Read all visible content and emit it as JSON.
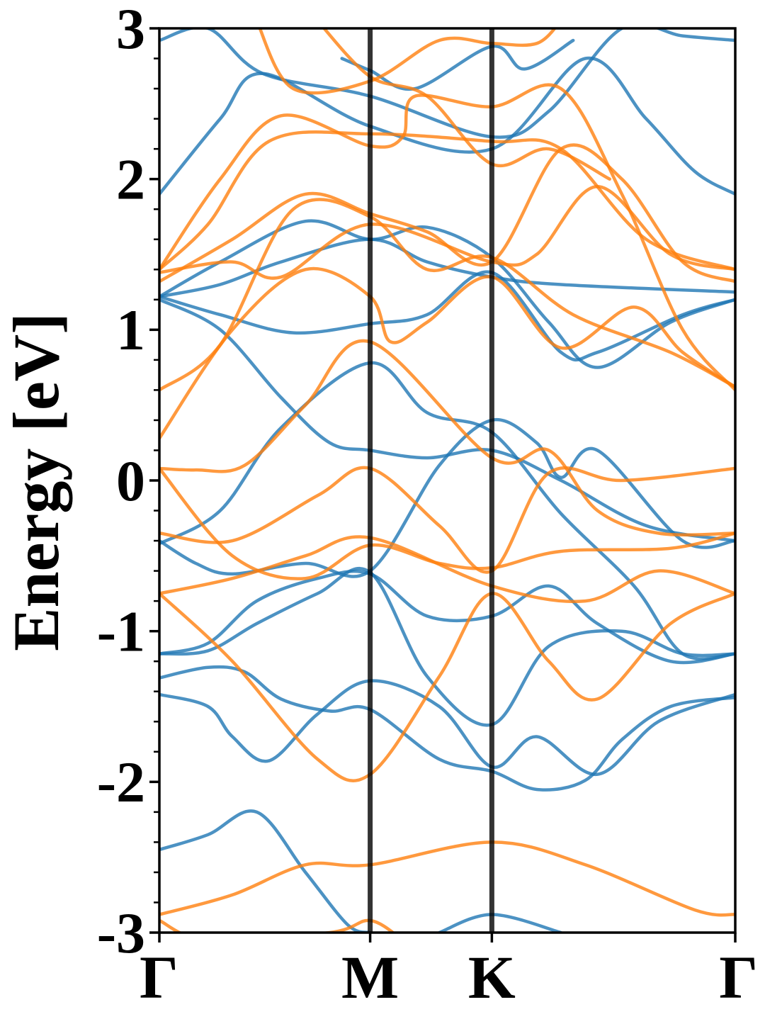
{
  "chart_data": {
    "type": "line",
    "title": "",
    "xlabel": "",
    "ylabel": "Energy [eV]",
    "ylim": [
      -3,
      3
    ],
    "k_path": [
      0,
      1.732,
      2.732,
      4.732
    ],
    "high_symmetry_points": [
      {
        "label": "Γ",
        "k": 0
      },
      {
        "label": "M",
        "k": 1.732
      },
      {
        "label": "K",
        "k": 2.732
      },
      {
        "label": "Γ",
        "k": 4.732
      }
    ],
    "y_ticks": [
      {
        "value": 3,
        "label": "3"
      },
      {
        "value": 2,
        "label": "2"
      },
      {
        "value": 1,
        "label": "1"
      },
      {
        "value": 0,
        "label": "0"
      },
      {
        "value": -1,
        "label": "-1"
      },
      {
        "value": -2,
        "label": "-2"
      },
      {
        "value": -3,
        "label": "-3"
      }
    ],
    "minor_y_step": 0.2,
    "grid": false,
    "legend": "none",
    "colors": {
      "spin_up": "#1f77b4",
      "spin_down": "#ff7f0e",
      "kline": "#000000"
    },
    "series": [
      {
        "group": "blue",
        "points": [
          [
            0,
            -2.45
          ],
          [
            0.4,
            -2.35
          ],
          [
            0.8,
            -2.2
          ],
          [
            1.2,
            -2.6
          ],
          [
            1.55,
            -2.95
          ],
          [
            1.732,
            -3.0
          ]
        ]
      },
      {
        "group": "blue",
        "points": [
          [
            0,
            -1.42
          ],
          [
            0.4,
            -1.5
          ],
          [
            0.6,
            -1.7
          ],
          [
            0.9,
            -1.86
          ],
          [
            1.3,
            -1.55
          ],
          [
            1.732,
            -1.33
          ],
          [
            2.3,
            -1.5
          ],
          [
            2.732,
            -1.9
          ],
          [
            3.1,
            -1.7
          ],
          [
            3.6,
            -1.95
          ],
          [
            4.1,
            -1.6
          ],
          [
            4.732,
            -1.42
          ]
        ]
      },
      {
        "group": "blue",
        "points": [
          [
            0,
            -1.31
          ],
          [
            0.4,
            -1.24
          ],
          [
            0.7,
            -1.27
          ],
          [
            1.0,
            -1.45
          ],
          [
            1.4,
            -1.53
          ],
          [
            1.732,
            -1.52
          ],
          [
            2.3,
            -1.85
          ],
          [
            2.732,
            -1.93
          ],
          [
            3.1,
            -2.05
          ],
          [
            3.5,
            -1.99
          ],
          [
            3.8,
            -1.72
          ],
          [
            4.2,
            -1.5
          ],
          [
            4.732,
            -1.44
          ]
        ]
      },
      {
        "group": "blue",
        "points": [
          [
            0,
            -1.15
          ],
          [
            0.4,
            -1.13
          ],
          [
            0.8,
            -0.95
          ],
          [
            1.3,
            -0.75
          ],
          [
            1.732,
            -0.61
          ],
          [
            2.2,
            -1.3
          ],
          [
            2.732,
            -1.62
          ],
          [
            3.2,
            -1.1
          ],
          [
            3.8,
            -1.0
          ],
          [
            4.3,
            -1.15
          ],
          [
            4.732,
            -1.15
          ]
        ]
      },
      {
        "group": "blue",
        "points": [
          [
            0,
            -1.15
          ],
          [
            0.4,
            -1.08
          ],
          [
            0.8,
            -0.8
          ],
          [
            1.3,
            -0.65
          ],
          [
            1.732,
            -0.62
          ],
          [
            2.2,
            -0.9
          ],
          [
            2.732,
            -0.9
          ],
          [
            3.2,
            -0.7
          ],
          [
            3.6,
            -0.95
          ],
          [
            4.2,
            -1.2
          ],
          [
            4.732,
            -1.15
          ]
        ]
      },
      {
        "group": "blue",
        "points": [
          [
            0,
            -0.4
          ],
          [
            0.3,
            -0.55
          ],
          [
            0.6,
            -0.62
          ],
          [
            1.2,
            -0.55
          ],
          [
            1.732,
            -0.6
          ],
          [
            2.3,
            0.1
          ],
          [
            2.732,
            0.4
          ],
          [
            3.1,
            0.25
          ],
          [
            3.3,
            0.02
          ],
          [
            3.6,
            0.2
          ],
          [
            4.3,
            -0.4
          ],
          [
            4.732,
            -0.4
          ]
        ]
      },
      {
        "group": "blue",
        "points": [
          [
            0,
            -0.42
          ],
          [
            0.5,
            -0.2
          ],
          [
            1.0,
            0.35
          ],
          [
            1.732,
            0.78
          ],
          [
            2.2,
            0.45
          ],
          [
            2.732,
            0.32
          ],
          [
            3.3,
            -0.22
          ],
          [
            3.9,
            -0.7
          ],
          [
            4.3,
            -1.15
          ],
          [
            4.732,
            -1.15
          ]
        ]
      },
      {
        "group": "blue",
        "points": [
          [
            0,
            1.2
          ],
          [
            0.5,
            1.0
          ],
          [
            1.0,
            0.55
          ],
          [
            1.4,
            0.25
          ],
          [
            1.732,
            0.2
          ],
          [
            2.2,
            0.15
          ],
          [
            2.732,
            0.2
          ],
          [
            3.3,
            0.0
          ],
          [
            4.0,
            -0.3
          ],
          [
            4.732,
            -0.4
          ]
        ]
      },
      {
        "group": "blue",
        "points": [
          [
            0,
            1.22
          ],
          [
            0.5,
            1.1
          ],
          [
            1.1,
            0.98
          ],
          [
            1.732,
            1.04
          ],
          [
            2.2,
            1.1
          ],
          [
            2.732,
            1.38
          ],
          [
            3.3,
            0.85
          ],
          [
            3.6,
            0.85
          ],
          [
            4.3,
            1.1
          ],
          [
            4.732,
            1.2
          ]
        ]
      },
      {
        "group": "blue",
        "points": [
          [
            0,
            1.22
          ],
          [
            0.5,
            1.3
          ],
          [
            1.0,
            1.45
          ],
          [
            1.732,
            1.6
          ],
          [
            2.2,
            1.45
          ],
          [
            2.732,
            1.35
          ],
          [
            3.3,
            1.3
          ],
          [
            4.732,
            1.25
          ]
        ]
      },
      {
        "group": "blue",
        "points": [
          [
            0,
            1.22
          ],
          [
            0.5,
            1.45
          ],
          [
            1.2,
            1.72
          ],
          [
            1.732,
            1.6
          ],
          [
            2.2,
            1.68
          ],
          [
            2.732,
            1.48
          ],
          [
            3.2,
            1.05
          ],
          [
            3.6,
            0.75
          ],
          [
            4.2,
            1.05
          ],
          [
            4.732,
            1.2
          ]
        ]
      },
      {
        "group": "blue",
        "points": [
          [
            0,
            1.9
          ],
          [
            0.5,
            2.4
          ],
          [
            0.85,
            2.7
          ],
          [
            1.732,
            2.35
          ],
          [
            2.732,
            2.2
          ],
          [
            3.5,
            2.8
          ],
          [
            4.0,
            2.4
          ],
          [
            4.4,
            2.05
          ],
          [
            4.732,
            1.9
          ]
        ]
      },
      {
        "group": "blue",
        "points": [
          [
            0,
            2.92
          ],
          [
            0.4,
            3.0
          ],
          [
            0.85,
            2.7
          ],
          [
            1.732,
            2.55
          ],
          [
            2.732,
            2.28
          ],
          [
            3.2,
            2.45
          ],
          [
            3.8,
            3.0
          ],
          [
            4.3,
            2.95
          ],
          [
            4.732,
            2.92
          ]
        ]
      },
      {
        "group": "blue",
        "points": [
          [
            1.5,
            2.8
          ],
          [
            1.732,
            2.72
          ],
          [
            2.1,
            2.6
          ],
          [
            2.732,
            2.88
          ],
          [
            3.0,
            2.73
          ],
          [
            3.4,
            2.92
          ]
        ]
      },
      {
        "group": "blue",
        "points": [
          [
            2.3,
            -3.0
          ],
          [
            2.732,
            -2.88
          ],
          [
            3.3,
            -3.0
          ]
        ]
      },
      {
        "group": "orange",
        "points": [
          [
            0,
            -2.88
          ],
          [
            0.6,
            -2.75
          ],
          [
            1.2,
            -2.55
          ],
          [
            1.732,
            -2.55
          ],
          [
            2.732,
            -2.4
          ],
          [
            3.5,
            -2.55
          ],
          [
            4.4,
            -2.85
          ],
          [
            4.732,
            -2.88
          ]
        ]
      },
      {
        "group": "orange",
        "points": [
          [
            0,
            -2.92
          ],
          [
            0.4,
            -3.05
          ],
          [
            1.4,
            -3.0
          ],
          [
            1.732,
            -2.92
          ],
          [
            2.0,
            -3.05
          ]
        ]
      },
      {
        "group": "orange",
        "points": [
          [
            0,
            -0.75
          ],
          [
            0.6,
            -1.2
          ],
          [
            1.3,
            -1.85
          ],
          [
            1.732,
            -1.95
          ],
          [
            2.3,
            -1.3
          ],
          [
            2.732,
            -0.75
          ],
          [
            3.2,
            -1.2
          ],
          [
            3.6,
            -1.45
          ],
          [
            4.2,
            -0.95
          ],
          [
            4.732,
            -0.75
          ]
        ]
      },
      {
        "group": "orange",
        "points": [
          [
            0,
            0.08
          ],
          [
            0.6,
            -0.5
          ],
          [
            1.2,
            -0.65
          ],
          [
            1.732,
            -0.43
          ],
          [
            2.3,
            -0.55
          ],
          [
            2.732,
            -0.58
          ],
          [
            3.3,
            -0.47
          ],
          [
            4.2,
            -0.45
          ],
          [
            4.732,
            -0.35
          ]
        ]
      },
      {
        "group": "orange",
        "points": [
          [
            0,
            -0.35
          ],
          [
            0.6,
            -0.4
          ],
          [
            1.3,
            -0.1
          ],
          [
            1.732,
            0.08
          ],
          [
            2.3,
            -0.3
          ],
          [
            2.732,
            -0.6
          ],
          [
            3.2,
            0.05
          ],
          [
            3.8,
            0.0
          ],
          [
            4.732,
            0.08
          ]
        ]
      },
      {
        "group": "orange",
        "points": [
          [
            0,
            -0.75
          ],
          [
            0.6,
            -0.65
          ],
          [
            1.2,
            -0.5
          ],
          [
            1.732,
            -0.38
          ],
          [
            2.732,
            -0.7
          ],
          [
            3.5,
            -0.8
          ],
          [
            4.1,
            -0.6
          ],
          [
            4.732,
            -0.75
          ]
        ]
      },
      {
        "group": "orange",
        "points": [
          [
            0,
            0.08
          ],
          [
            0.3,
            0.07
          ],
          [
            0.7,
            0.1
          ],
          [
            1.2,
            0.5
          ],
          [
            1.732,
            0.92
          ],
          [
            2.732,
            0.15
          ],
          [
            3.2,
            0.2
          ],
          [
            3.6,
            -0.2
          ],
          [
            4.1,
            -0.35
          ],
          [
            4.732,
            -0.35
          ]
        ]
      },
      {
        "group": "orange",
        "points": [
          [
            0,
            0.28
          ],
          [
            0.6,
            1.0
          ],
          [
            1.2,
            1.4
          ],
          [
            1.732,
            1.22
          ],
          [
            1.9,
            0.92
          ],
          [
            2.2,
            1.05
          ],
          [
            2.732,
            1.35
          ],
          [
            3.3,
            0.88
          ],
          [
            3.9,
            1.15
          ],
          [
            4.3,
            0.85
          ],
          [
            4.732,
            0.62
          ]
        ]
      },
      {
        "group": "orange",
        "points": [
          [
            0,
            0.6
          ],
          [
            0.5,
            0.9
          ],
          [
            1.1,
            1.8
          ],
          [
            1.732,
            1.75
          ],
          [
            2.2,
            1.4
          ],
          [
            2.732,
            1.48
          ],
          [
            3.4,
            1.1
          ],
          [
            4.2,
            0.85
          ],
          [
            4.732,
            0.62
          ]
        ]
      },
      {
        "group": "orange",
        "points": [
          [
            0,
            1.38
          ],
          [
            0.6,
            1.45
          ],
          [
            1.0,
            1.35
          ],
          [
            1.732,
            1.7
          ],
          [
            2.732,
            1.45
          ],
          [
            3.1,
            1.5
          ],
          [
            3.6,
            1.95
          ],
          [
            4.2,
            1.5
          ],
          [
            4.732,
            1.4
          ]
        ]
      },
      {
        "group": "orange",
        "points": [
          [
            0,
            1.32
          ],
          [
            0.6,
            1.6
          ],
          [
            1.2,
            1.9
          ],
          [
            1.732,
            1.77
          ],
          [
            2.2,
            1.65
          ],
          [
            2.732,
            1.45
          ],
          [
            3.3,
            2.2
          ],
          [
            3.8,
            2.0
          ],
          [
            4.3,
            1.45
          ],
          [
            4.732,
            1.32
          ]
        ]
      },
      {
        "group": "orange",
        "points": [
          [
            0,
            1.4
          ],
          [
            0.4,
            1.7
          ],
          [
            0.9,
            2.25
          ],
          [
            1.732,
            2.3
          ],
          [
            2.732,
            2.25
          ],
          [
            3.3,
            2.2
          ],
          [
            4.0,
            1.6
          ],
          [
            4.732,
            1.4
          ]
        ]
      },
      {
        "group": "orange",
        "points": [
          [
            0,
            1.4
          ],
          [
            0.5,
            2.0
          ],
          [
            1.0,
            2.42
          ],
          [
            1.732,
            2.22
          ],
          [
            2.0,
            2.28
          ],
          [
            2.1,
            2.55
          ],
          [
            2.732,
            2.48
          ],
          [
            3.3,
            2.6
          ],
          [
            3.8,
            1.9
          ],
          [
            4.3,
            1.0
          ],
          [
            4.732,
            0.6
          ]
        ]
      },
      {
        "group": "orange",
        "points": [
          [
            0.8,
            3.05
          ],
          [
            1.1,
            2.6
          ],
          [
            1.732,
            2.65
          ],
          [
            2.3,
            2.92
          ],
          [
            2.732,
            2.9
          ],
          [
            3.1,
            2.9
          ],
          [
            3.3,
            3.05
          ]
        ]
      },
      {
        "group": "orange",
        "points": [
          [
            1.3,
            3.05
          ],
          [
            1.732,
            2.68
          ],
          [
            2.2,
            2.55
          ],
          [
            2.732,
            2.1
          ],
          [
            3.2,
            2.2
          ],
          [
            3.7,
            2.0
          ]
        ]
      }
    ]
  }
}
